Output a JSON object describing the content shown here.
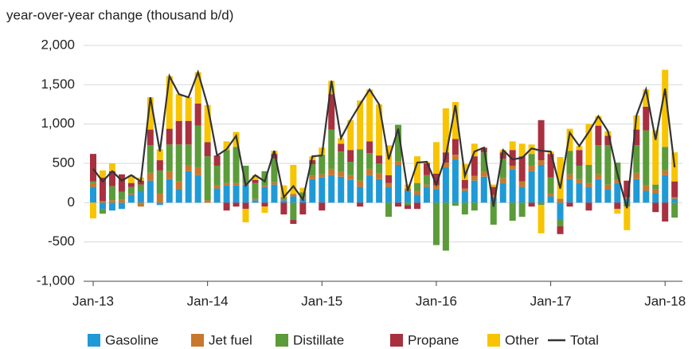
{
  "chart_data": {
    "type": "bar",
    "stacked": true,
    "title": "year-over-year change (thousand b/d)",
    "categories": [
      "Jan-13",
      null,
      null,
      null,
      null,
      null,
      null,
      null,
      null,
      null,
      null,
      null,
      "Jan-14",
      null,
      null,
      null,
      null,
      null,
      null,
      null,
      null,
      null,
      null,
      null,
      "Jan-15",
      null,
      null,
      null,
      null,
      null,
      null,
      null,
      null,
      null,
      null,
      null,
      "Jan-16",
      null,
      null,
      null,
      null,
      null,
      null,
      null,
      null,
      null,
      null,
      null,
      "Jan-17",
      null,
      null,
      null,
      null,
      null,
      null,
      null,
      null,
      null,
      null,
      null,
      "Jan-18",
      null
    ],
    "ylim": [
      -1000,
      2000
    ],
    "yticks": [
      {
        "value": -1000,
        "label": "-1,000"
      },
      -500,
      0,
      500,
      {
        "value": 1000,
        "label": "1,000"
      },
      {
        "value": 1500,
        "label": "1,500"
      },
      {
        "value": 2000,
        "label": "2,000"
      }
    ],
    "grid": true,
    "series": [
      {
        "name": "Gasoline",
        "color": "#1f9ad6",
        "values": [
          200,
          -80,
          -100,
          -80,
          100,
          150,
          280,
          -30,
          300,
          170,
          400,
          350,
          0,
          180,
          220,
          220,
          230,
          30,
          200,
          230,
          30,
          80,
          50,
          300,
          320,
          350,
          330,
          290,
          200,
          350,
          300,
          200,
          480,
          150,
          100,
          200,
          170,
          450,
          550,
          150,
          280,
          330,
          70,
          250,
          420,
          200,
          400,
          480,
          80,
          -220,
          300,
          250,
          200,
          300,
          170,
          250,
          50,
          300,
          150,
          120,
          350,
          50
        ]
      },
      {
        "name": "Jet fuel",
        "color": "#c8782c",
        "values": [
          50,
          20,
          30,
          40,
          20,
          -50,
          100,
          120,
          100,
          100,
          80,
          100,
          30,
          40,
          30,
          30,
          20,
          20,
          20,
          30,
          20,
          30,
          20,
          40,
          40,
          80,
          60,
          60,
          80,
          80,
          70,
          50,
          50,
          30,
          50,
          30,
          50,
          60,
          60,
          30,
          60,
          60,
          30,
          60,
          50,
          70,
          70,
          60,
          40,
          50,
          60,
          50,
          50,
          60,
          60,
          40,
          20,
          80,
          70,
          50,
          60,
          20
        ]
      },
      {
        "name": "Distillate",
        "color": "#5b9b3a",
        "values": [
          20,
          -60,
          180,
          100,
          80,
          80,
          350,
          290,
          340,
          470,
          260,
          530,
          560,
          250,
          420,
          460,
          220,
          200,
          180,
          300,
          20,
          -220,
          60,
          150,
          250,
          500,
          260,
          170,
          400,
          200,
          130,
          -180,
          460,
          -30,
          100,
          120,
          -540,
          -610,
          -40,
          -150,
          -100,
          250,
          -280,
          250,
          -230,
          -180,
          150,
          -30,
          200,
          -80,
          300,
          170,
          230,
          370,
          500,
          220,
          -50,
          350,
          700,
          60,
          300,
          -190
        ]
      },
      {
        "name": "Propane",
        "color": "#a8303f",
        "values": [
          350,
          300,
          190,
          220,
          50,
          50,
          200,
          130,
          200,
          300,
          300,
          280,
          180,
          130,
          -100,
          -50,
          -80,
          40,
          -50,
          60,
          -150,
          -50,
          -150,
          50,
          -100,
          450,
          100,
          150,
          -50,
          150,
          100,
          100,
          -50,
          -50,
          -80,
          150,
          150,
          130,
          200,
          110,
          250,
          60,
          100,
          80,
          200,
          320,
          -50,
          510,
          300,
          -100,
          -50,
          200,
          -100,
          250,
          120,
          -80,
          210,
          200,
          300,
          -120,
          -240,
          200
        ]
      },
      {
        "name": "Other",
        "color": "#f8c400",
        "values": [
          -200,
          90,
          100,
          0,
          100,
          40,
          410,
          140,
          670,
          340,
          300,
          400,
          470,
          0,
          110,
          190,
          -170,
          60,
          -80,
          40,
          150,
          370,
          60,
          50,
          90,
          170,
          70,
          380,
          620,
          660,
          650,
          380,
          0,
          50,
          340,
          20,
          400,
          560,
          470,
          200,
          160,
          0,
          30,
          30,
          110,
          160,
          120,
          -360,
          30,
          530,
          280,
          50,
          520,
          120,
          60,
          -60,
          -300,
          180,
          220,
          690,
          980,
          370
        ]
      },
      {
        "name": "Total",
        "color": "#333333",
        "type": "line",
        "values": [
          430,
          270,
          400,
          280,
          350,
          270,
          1340,
          650,
          1610,
          1380,
          1340,
          1660,
          1240,
          600,
          680,
          850,
          220,
          350,
          270,
          660,
          70,
          210,
          40,
          590,
          600,
          1550,
          820,
          1050,
          1250,
          1440,
          1250,
          550,
          940,
          150,
          510,
          520,
          230,
          590,
          1240,
          340,
          650,
          700,
          -50,
          670,
          550,
          570,
          690,
          660,
          650,
          180,
          890,
          720,
          900,
          1100,
          910,
          370,
          -70,
          1110,
          1440,
          800,
          1450,
          450
        ]
      }
    ]
  }
}
